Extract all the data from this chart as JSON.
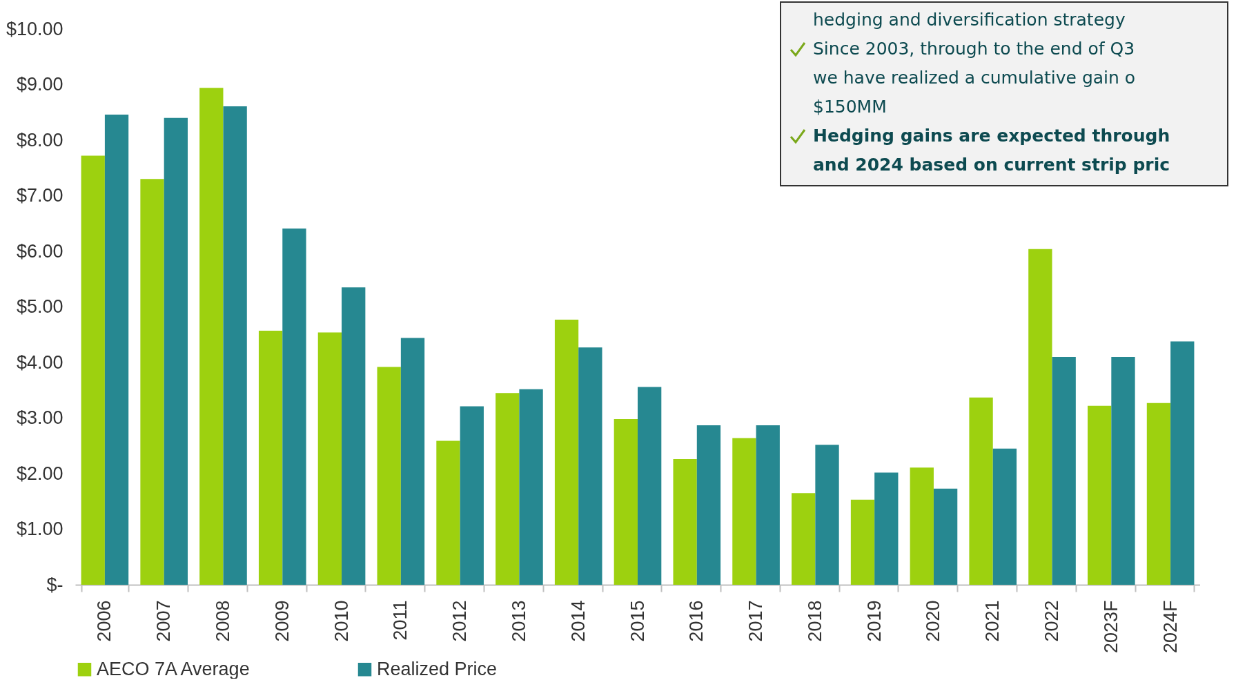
{
  "chart_data": {
    "type": "bar",
    "categories": [
      "2006",
      "2007",
      "2008",
      "2009",
      "2010",
      "2011",
      "2012",
      "2013",
      "2014",
      "2015",
      "2016",
      "2017",
      "2018",
      "2019",
      "2020",
      "2021",
      "2022",
      "2023F",
      "2024F"
    ],
    "series": [
      {
        "name": "AECO 7A Average",
        "color": "#9dd10f",
        "values": [
          7.72,
          7.3,
          8.94,
          4.57,
          4.54,
          3.92,
          2.59,
          3.45,
          4.77,
          2.98,
          2.26,
          2.64,
          1.65,
          1.53,
          2.11,
          3.37,
          6.04,
          3.22,
          3.27
        ]
      },
      {
        "name": "Realized Price",
        "color": "#268891",
        "values": [
          8.46,
          8.4,
          8.61,
          6.41,
          5.35,
          4.44,
          3.21,
          3.52,
          4.27,
          3.56,
          2.87,
          2.87,
          2.52,
          2.02,
          1.73,
          2.45,
          4.1,
          4.1,
          4.38
        ]
      }
    ],
    "ylim": [
      0,
      10
    ],
    "yticks": [
      {
        "value": 0,
        "label": "$-"
      },
      {
        "value": 1,
        "label": "$1.00"
      },
      {
        "value": 2,
        "label": "$2.00"
      },
      {
        "value": 3,
        "label": "$3.00"
      },
      {
        "value": 4,
        "label": "$4.00"
      },
      {
        "value": 5,
        "label": "$5.00"
      },
      {
        "value": 6,
        "label": "$6.00"
      },
      {
        "value": 7,
        "label": "$7.00"
      },
      {
        "value": 8,
        "label": "$8.00"
      },
      {
        "value": 9,
        "label": "$9.00"
      },
      {
        "value": 10,
        "label": "$10.00"
      }
    ],
    "grid": false,
    "legend": "bottom",
    "annotations": [
      "hedging and diversification strategy",
      "Since 2003, through to the end of Q3",
      "we have realized a cumulative gain o",
      "$150MM",
      "Hedging gains are expected through",
      "and 2024 based on current strip pric"
    ]
  }
}
